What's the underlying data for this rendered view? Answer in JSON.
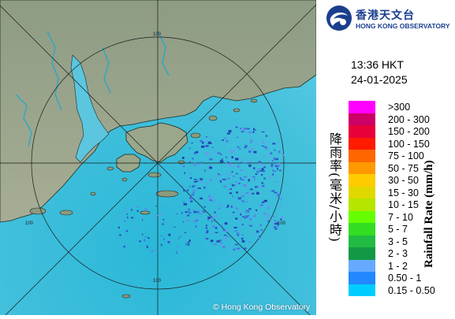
{
  "header": {
    "org_name_cn": "香港天文台",
    "org_name_en": "HONG KONG OBSERVATORY"
  },
  "timestamp": {
    "time": "13:36 HKT",
    "date": "24-01-2025"
  },
  "axis_title_cn": "降雨率(毫米/小時)",
  "axis_title_en": "Rainfall Rate (mm/h)",
  "legend": [
    {
      "label": ">300",
      "color": "#ff00ff"
    },
    {
      "label": "200 - 300",
      "color": "#cc0066"
    },
    {
      "label": "150 - 200",
      "color": "#e8003a"
    },
    {
      "label": "100 - 150",
      "color": "#ff1a00"
    },
    {
      "label": "75 - 100",
      "color": "#ff6600"
    },
    {
      "label": "50 - 75",
      "color": "#ff9900"
    },
    {
      "label": "30 - 50",
      "color": "#ffcc00"
    },
    {
      "label": "15 - 30",
      "color": "#e0d800"
    },
    {
      "label": "10 - 15",
      "color": "#b4e600"
    },
    {
      "label": "7 - 10",
      "color": "#66ff00"
    },
    {
      "label": "5 - 7",
      "color": "#33dd22"
    },
    {
      "label": "3 - 5",
      "color": "#22bb44"
    },
    {
      "label": "2 - 3",
      "color": "#119944"
    },
    {
      "label": "1 - 2",
      "color": "#66aaff"
    },
    {
      "label": "0.50 - 1",
      "color": "#2288ff"
    },
    {
      "label": "0.15 - 0.50",
      "color": "#00ccff"
    }
  ],
  "map": {
    "range_ring_labels": [
      "100",
      "100",
      "100",
      "100"
    ],
    "copyright": "© Hong Kong Observatory"
  }
}
